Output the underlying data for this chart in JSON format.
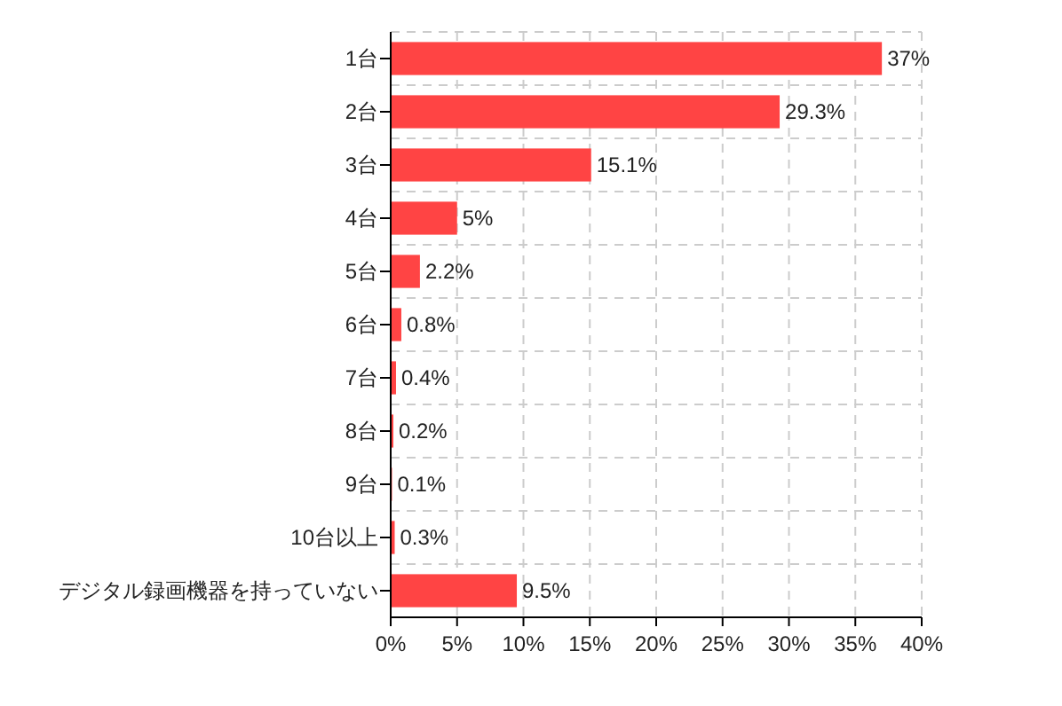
{
  "chart_data": {
    "type": "bar",
    "orientation": "horizontal",
    "categories": [
      "1台",
      "2台",
      "3台",
      "4台",
      "5台",
      "6台",
      "7台",
      "8台",
      "9台",
      "10台以上",
      "デジタル録画機器を持っていない"
    ],
    "values": [
      37,
      29.3,
      15.1,
      5,
      2.2,
      0.8,
      0.4,
      0.2,
      0.1,
      0.3,
      9.5
    ],
    "value_labels": [
      "37%",
      "29.3%",
      "15.1%",
      "5%",
      "2.2%",
      "0.8%",
      "0.4%",
      "0.2%",
      "0.1%",
      "0.3%",
      "9.5%"
    ],
    "color": "#ff4444",
    "xlim": [
      0,
      40
    ],
    "xticks": [
      {
        "value": 0,
        "label": "0%"
      },
      {
        "value": 5,
        "label": "5%"
      },
      {
        "value": 10,
        "label": "10%"
      },
      {
        "value": 15,
        "label": "15%"
      },
      {
        "value": 20,
        "label": "20%"
      },
      {
        "value": 25,
        "label": "25%"
      },
      {
        "value": 30,
        "label": "30%"
      },
      {
        "value": 35,
        "label": "35%"
      },
      {
        "value": 40,
        "label": "40%"
      }
    ],
    "grid": true
  }
}
